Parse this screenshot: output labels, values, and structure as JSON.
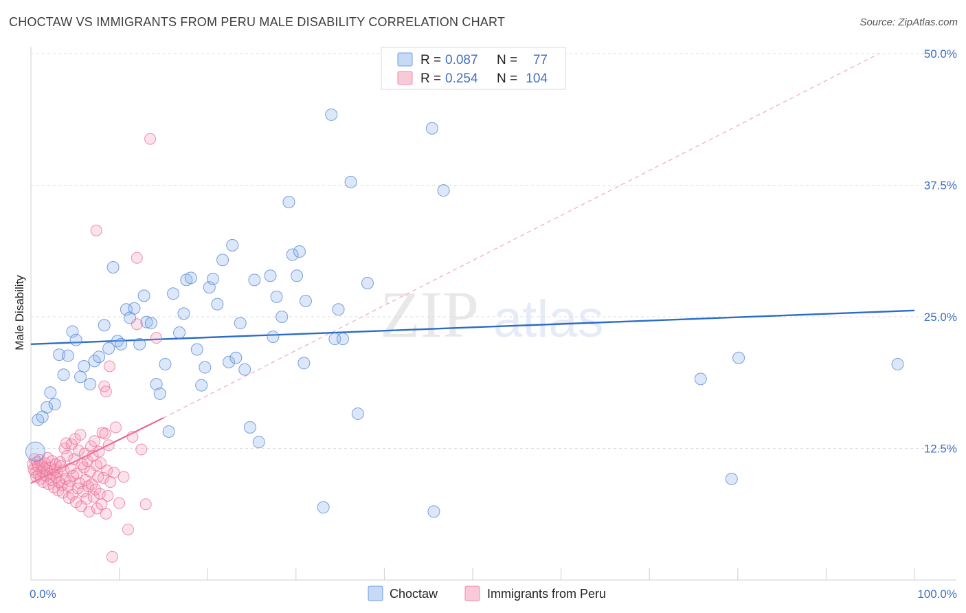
{
  "header": {
    "title": "CHOCTAW VS IMMIGRANTS FROM PERU MALE DISABILITY CORRELATION CHART",
    "source": "Source: ZipAtlas.com"
  },
  "watermark": {
    "zip": "ZIP",
    "atlas": "atlas"
  },
  "legend": {
    "rows": [
      {
        "r_label": "R =",
        "r_value": "0.087",
        "n_label": "N =",
        "n_value": "77"
      },
      {
        "r_label": "R =",
        "r_value": "0.254",
        "n_label": "N =",
        "n_value": "104"
      }
    ]
  },
  "bottom_legend": {
    "choctaw": "Choctaw",
    "peru": "Immigrants from Peru"
  },
  "chart_data": {
    "type": "scatter",
    "title": "CHOCTAW VS IMMIGRANTS FROM PERU MALE DISABILITY CORRELATION CHART",
    "ylabel": "Male Disability",
    "xlabel": "",
    "xlim": [
      0,
      100
    ],
    "ylim": [
      0,
      50
    ],
    "x_tick_labels": [
      "0.0%",
      "100.0%"
    ],
    "y_tick_labels": [
      "12.5%",
      "25.0%",
      "37.5%",
      "50.0%"
    ],
    "y_ticks": [
      12.5,
      25.0,
      37.5,
      50.0
    ],
    "grid": true,
    "colors": {
      "choctaw": "#6f9fe0",
      "peru": "#f08caa",
      "choctaw_line": "#2a6cc8",
      "peru_line": "#e8638e"
    },
    "series": [
      {
        "name": "Choctaw",
        "trend": {
          "x0": 0,
          "y0": 22.4,
          "x1": 100,
          "y1": 25.6
        },
        "points": [
          [
            0.5,
            12.2
          ],
          [
            0.8,
            15.2
          ],
          [
            1.3,
            15.5
          ],
          [
            1.8,
            16.4
          ],
          [
            2.2,
            17.8
          ],
          [
            2.7,
            16.7
          ],
          [
            3.2,
            21.4
          ],
          [
            3.7,
            19.5
          ],
          [
            4.2,
            21.3
          ],
          [
            4.7,
            23.6
          ],
          [
            5.1,
            22.8
          ],
          [
            5.6,
            19.3
          ],
          [
            6.0,
            20.3
          ],
          [
            6.7,
            18.6
          ],
          [
            7.2,
            20.8
          ],
          [
            7.7,
            21.2
          ],
          [
            8.3,
            24.2
          ],
          [
            8.8,
            22.0
          ],
          [
            9.3,
            29.7
          ],
          [
            9.8,
            22.7
          ],
          [
            10.2,
            22.4
          ],
          [
            10.8,
            25.7
          ],
          [
            11.2,
            24.9
          ],
          [
            11.7,
            25.8
          ],
          [
            12.3,
            22.4
          ],
          [
            12.8,
            27.0
          ],
          [
            13.1,
            24.5
          ],
          [
            13.6,
            24.4
          ],
          [
            14.2,
            18.6
          ],
          [
            14.6,
            17.7
          ],
          [
            15.2,
            20.5
          ],
          [
            15.6,
            14.1
          ],
          [
            16.1,
            27.2
          ],
          [
            16.8,
            23.5
          ],
          [
            17.3,
            25.3
          ],
          [
            17.6,
            28.5
          ],
          [
            18.1,
            28.7
          ],
          [
            18.8,
            21.9
          ],
          [
            19.3,
            18.5
          ],
          [
            19.7,
            20.2
          ],
          [
            20.2,
            27.8
          ],
          [
            20.6,
            28.6
          ],
          [
            21.1,
            26.2
          ],
          [
            21.7,
            30.4
          ],
          [
            22.4,
            20.7
          ],
          [
            22.8,
            31.8
          ],
          [
            23.2,
            21.1
          ],
          [
            23.7,
            24.4
          ],
          [
            24.2,
            20.0
          ],
          [
            24.8,
            14.5
          ],
          [
            25.3,
            28.5
          ],
          [
            25.8,
            13.1
          ],
          [
            27.1,
            28.9
          ],
          [
            27.4,
            23.1
          ],
          [
            27.8,
            26.9
          ],
          [
            28.4,
            25.0
          ],
          [
            29.2,
            35.9
          ],
          [
            29.6,
            30.9
          ],
          [
            30.1,
            28.9
          ],
          [
            30.4,
            31.2
          ],
          [
            30.9,
            20.6
          ],
          [
            31.1,
            26.5
          ],
          [
            33.1,
            6.9
          ],
          [
            34.0,
            44.2
          ],
          [
            34.4,
            22.9
          ],
          [
            34.8,
            25.7
          ],
          [
            35.3,
            22.9
          ],
          [
            36.2,
            37.8
          ],
          [
            37.0,
            15.8
          ],
          [
            38.1,
            28.2
          ],
          [
            45.4,
            42.9
          ],
          [
            45.6,
            6.5
          ],
          [
            46.7,
            37.0
          ],
          [
            75.8,
            19.1
          ],
          [
            79.3,
            9.6
          ],
          [
            80.1,
            21.1
          ],
          [
            98.1,
            20.5
          ]
        ]
      },
      {
        "name": "Immigrants from Peru",
        "trend": {
          "x0": 0,
          "y0": 9.2,
          "x1": 15,
          "y1": 15.4,
          "dashed_x1": 96,
          "dashed_y1": 50.0
        },
        "points": [
          [
            0.2,
            11.0
          ],
          [
            0.3,
            10.5
          ],
          [
            0.4,
            11.5
          ],
          [
            0.5,
            10.2
          ],
          [
            0.6,
            9.8
          ],
          [
            0.7,
            11.2
          ],
          [
            0.8,
            10.8
          ],
          [
            0.9,
            10.0
          ],
          [
            1.0,
            11.4
          ],
          [
            1.1,
            9.6
          ],
          [
            1.2,
            10.9
          ],
          [
            1.3,
            10.3
          ],
          [
            1.4,
            9.3
          ],
          [
            1.5,
            10.6
          ],
          [
            1.6,
            11.1
          ],
          [
            1.7,
            9.9
          ],
          [
            1.8,
            10.4
          ],
          [
            1.9,
            11.6
          ],
          [
            2.0,
            9.1
          ],
          [
            2.1,
            10.7
          ],
          [
            2.2,
            10.1
          ],
          [
            2.3,
            9.5
          ],
          [
            2.4,
            11.3
          ],
          [
            2.5,
            10.0
          ],
          [
            2.6,
            8.8
          ],
          [
            2.7,
            10.5
          ],
          [
            2.8,
            11.0
          ],
          [
            2.9,
            9.7
          ],
          [
            3.0,
            10.2
          ],
          [
            3.1,
            8.5
          ],
          [
            3.2,
            9.3
          ],
          [
            3.3,
            11.2
          ],
          [
            3.4,
            10.8
          ],
          [
            3.5,
            9.0
          ],
          [
            3.6,
            8.3
          ],
          [
            3.7,
            10.4
          ],
          [
            3.8,
            12.5
          ],
          [
            3.9,
            9.6
          ],
          [
            4.0,
            13.0
          ],
          [
            4.1,
            11.8
          ],
          [
            4.2,
            8.9
          ],
          [
            4.3,
            7.8
          ],
          [
            4.4,
            9.4
          ],
          [
            4.5,
            10.6
          ],
          [
            4.6,
            12.9
          ],
          [
            4.7,
            8.1
          ],
          [
            4.8,
            9.9
          ],
          [
            4.9,
            11.5
          ],
          [
            5.0,
            13.4
          ],
          [
            5.1,
            7.4
          ],
          [
            5.2,
            10.1
          ],
          [
            5.3,
            8.7
          ],
          [
            5.4,
            12.3
          ],
          [
            5.5,
            9.2
          ],
          [
            5.6,
            13.8
          ],
          [
            5.7,
            7.0
          ],
          [
            5.8,
            11.0
          ],
          [
            5.9,
            8.4
          ],
          [
            6.0,
            10.7
          ],
          [
            6.1,
            12.0
          ],
          [
            6.2,
            9.5
          ],
          [
            6.3,
            7.7
          ],
          [
            6.4,
            11.3
          ],
          [
            6.5,
            8.9
          ],
          [
            6.6,
            6.5
          ],
          [
            6.7,
            10.3
          ],
          [
            6.8,
            12.7
          ],
          [
            6.9,
            9.1
          ],
          [
            7.0,
            11.8
          ],
          [
            7.1,
            7.9
          ],
          [
            7.2,
            13.2
          ],
          [
            7.3,
            8.6
          ],
          [
            7.4,
            10.9
          ],
          [
            7.5,
            6.8
          ],
          [
            7.6,
            9.8
          ],
          [
            7.7,
            12.2
          ],
          [
            7.8,
            8.2
          ],
          [
            7.9,
            11.1
          ],
          [
            8.0,
            7.2
          ],
          [
            8.1,
            14.0
          ],
          [
            8.2,
            9.7
          ],
          [
            8.3,
            18.4
          ],
          [
            8.4,
            13.9
          ],
          [
            8.5,
            6.3
          ],
          [
            8.6,
            10.4
          ],
          [
            8.7,
            8.0
          ],
          [
            8.8,
            12.8
          ],
          [
            8.9,
            20.3
          ],
          [
            9.0,
            9.3
          ],
          [
            9.2,
            2.2
          ],
          [
            9.4,
            10.2
          ],
          [
            9.6,
            14.5
          ],
          [
            10.0,
            7.3
          ],
          [
            10.5,
            9.8
          ],
          [
            11.0,
            4.8
          ],
          [
            11.5,
            13.6
          ],
          [
            12.0,
            24.3
          ],
          [
            12.5,
            12.4
          ],
          [
            13.0,
            7.2
          ],
          [
            13.5,
            41.9
          ],
          [
            14.2,
            23.0
          ],
          [
            7.4,
            33.2
          ],
          [
            8.5,
            17.9
          ],
          [
            12.0,
            30.6
          ]
        ]
      }
    ]
  }
}
